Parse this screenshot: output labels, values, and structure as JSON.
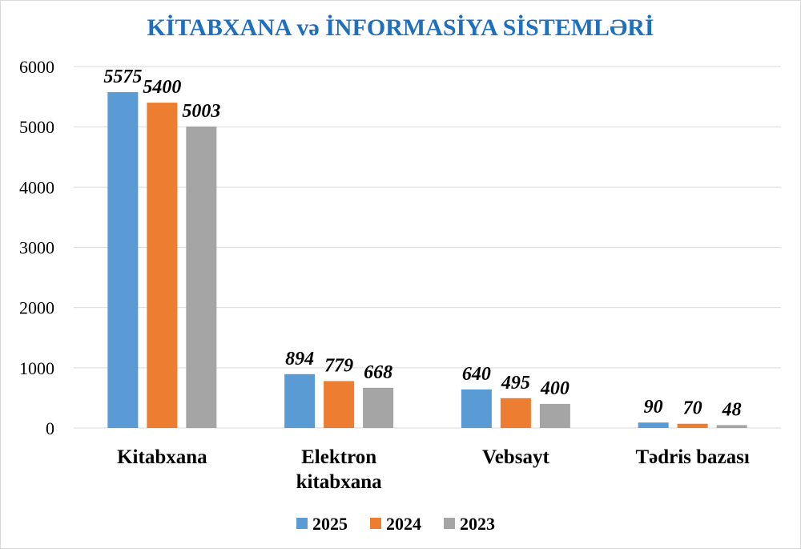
{
  "chart_data": {
    "type": "bar",
    "title": "KİTABXANA və İNFORMASİYA SİSTEMLƏRİ",
    "categories": [
      [
        "Kitabxana"
      ],
      [
        "Elektron",
        "kitabxana"
      ],
      [
        "Vebsayt"
      ],
      [
        "Tədris bazası"
      ]
    ],
    "series": [
      {
        "name": "2025",
        "color": "#5b9bd5",
        "values": [
          5575,
          894,
          640,
          90
        ]
      },
      {
        "name": "2024",
        "color": "#ed7d31",
        "values": [
          5400,
          779,
          495,
          70
        ]
      },
      {
        "name": "2023",
        "color": "#a5a5a5",
        "values": [
          5003,
          668,
          400,
          48
        ]
      }
    ],
    "ylim": [
      0,
      6000
    ],
    "yticks": [
      0,
      1000,
      2000,
      3000,
      4000,
      5000,
      6000
    ],
    "grid": true,
    "legend_position": "bottom"
  }
}
